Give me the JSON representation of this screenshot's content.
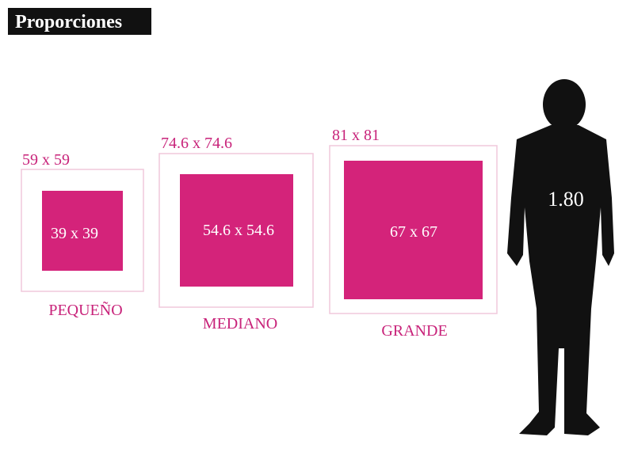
{
  "header": {
    "title": "Proporciones"
  },
  "frames": [
    {
      "outer": "59 x 59",
      "inner": "39 x 39",
      "name": "PEQUEÑO"
    },
    {
      "outer": "74.6 x 74.6",
      "inner": "54.6 x 54.6",
      "name": "MEDIANO"
    },
    {
      "outer": "81 x 81",
      "inner": "67 x 67",
      "name": "GRANDE"
    }
  ],
  "person": {
    "height": "1.80"
  }
}
